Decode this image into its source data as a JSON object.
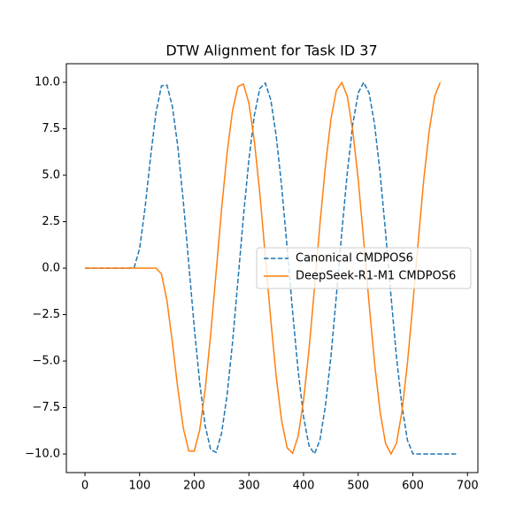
{
  "chart_data": {
    "type": "line",
    "title": "DTW Alignment for Task ID 37",
    "x": [
      0,
      10,
      20,
      30,
      40,
      50,
      60,
      70,
      80,
      90,
      100,
      110,
      120,
      130,
      140,
      150,
      160,
      170,
      180,
      190,
      200,
      210,
      220,
      230,
      240,
      250,
      260,
      270,
      280,
      290,
      300,
      310,
      320,
      330,
      340,
      350,
      360,
      370,
      380,
      390,
      400,
      410,
      420,
      430,
      440,
      450,
      460,
      470,
      480,
      490,
      500,
      510,
      520,
      530,
      540,
      550,
      560,
      570,
      580,
      590,
      600,
      610,
      620,
      630,
      640,
      650,
      660,
      670,
      680
    ],
    "series": [
      {
        "name": "Canonical CMDPOS6",
        "color": "#1f77b4",
        "dash": true,
        "values": [
          0,
          0,
          0,
          0,
          0,
          0,
          0,
          0,
          0,
          0.03,
          1.05,
          3.25,
          5.96,
          8.38,
          9.81,
          9.85,
          8.7,
          6.52,
          3.58,
          0.22,
          -3.18,
          -6.18,
          -8.48,
          -9.77,
          -9.91,
          -8.88,
          -6.84,
          -4.01,
          -0.64,
          2.78,
          5.84,
          8.24,
          9.67,
          9.96,
          9.06,
          7.1,
          4.37,
          1.07,
          -2.37,
          -5.49,
          -8,
          -9.56,
          -9.99,
          -9.25,
          -7.4,
          -4.78,
          -1.5,
          1.94,
          5.13,
          7.72,
          9.43,
          10,
          9.42,
          7.72,
          5.13,
          1.94,
          -1.5,
          -4.78,
          -7.4,
          -9.25,
          -9.99,
          -10,
          -10,
          -10,
          -10,
          -10,
          -10,
          -10,
          -10
        ]
      },
      {
        "name": "DeepSeek-R1-M1 CMDPOS6",
        "color": "#ff7f0e",
        "dash": false,
        "values": [
          0,
          0,
          0,
          0,
          0,
          0,
          0,
          0,
          0,
          0,
          0,
          0,
          0,
          0,
          -0.31,
          -1.74,
          -4,
          -6.5,
          -8.62,
          -9.84,
          -9.85,
          -8.7,
          -6.52,
          -3.58,
          -0.22,
          3.18,
          6.18,
          8.48,
          9.77,
          9.91,
          8.88,
          6.84,
          4.01,
          0.64,
          -2.78,
          -5.84,
          -8.24,
          -9.67,
          -9.96,
          -9.06,
          -7.1,
          -4.37,
          -1.07,
          2.37,
          5.49,
          8,
          9.56,
          9.99,
          9.25,
          7.4,
          4.78,
          1.5,
          -1.94,
          -5.13,
          -7.72,
          -9.43,
          -10,
          -9.42,
          -7.72,
          -5.13,
          -1.94,
          1.5,
          4.78,
          7.4,
          9.25,
          9.99,
          null,
          null,
          null
        ]
      }
    ],
    "xlim": [
      -34,
      719
    ],
    "xticks": [
      0,
      100,
      200,
      300,
      400,
      500,
      600,
      700
    ],
    "ylim": [
      -11,
      11
    ],
    "yticks": [
      {
        "value": -10,
        "label": "−10.0"
      },
      {
        "value": -7.5,
        "label": "−7.5"
      },
      {
        "value": -5,
        "label": "−5.0"
      },
      {
        "value": -2.5,
        "label": "−2.5"
      },
      {
        "value": 0,
        "label": "0.0"
      },
      {
        "value": 2.5,
        "label": "2.5"
      },
      {
        "value": 5,
        "label": "5.0"
      },
      {
        "value": 7.5,
        "label": "7.5"
      },
      {
        "value": 10,
        "label": "10.0"
      }
    ],
    "legend": "center right"
  }
}
